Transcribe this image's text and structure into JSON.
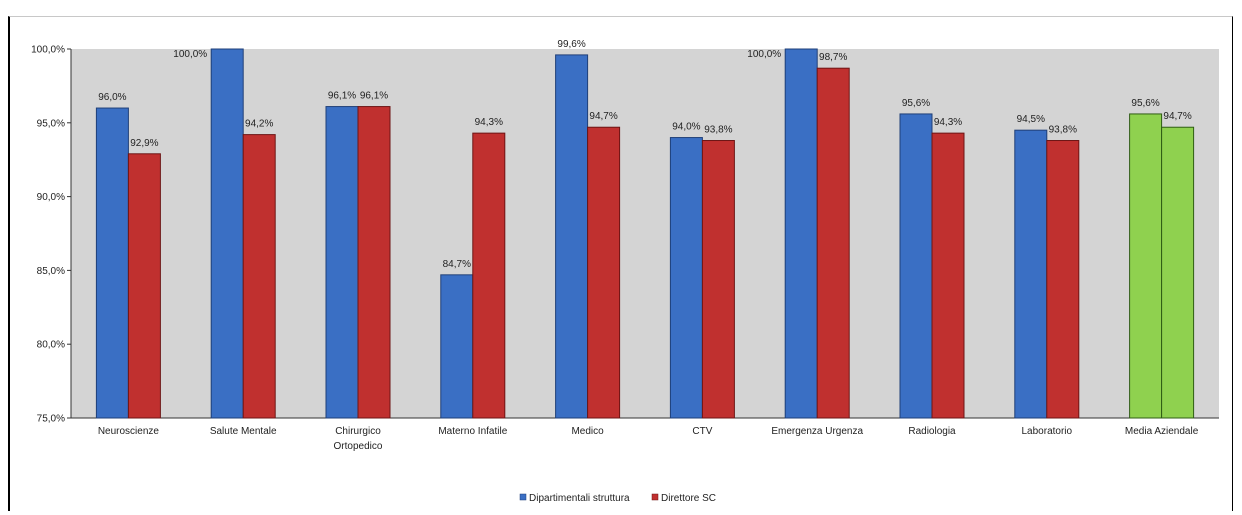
{
  "chart_data": {
    "type": "bar",
    "title": "",
    "xlabel": "",
    "ylabel": "",
    "ylim": [
      75,
      100
    ],
    "yticks": [
      "75,0%",
      "80,0%",
      "85,0%",
      "90,0%",
      "95,0%",
      "100,0%"
    ],
    "yticks_values": [
      75,
      80,
      85,
      90,
      95,
      100
    ],
    "grid": false,
    "legend_position": "bottom",
    "categories": [
      [
        "Neuroscienze"
      ],
      [
        "Salute Mentale"
      ],
      [
        "Chirurgico",
        "Ortopedico"
      ],
      [
        "Materno Infatile"
      ],
      [
        "Medico"
      ],
      [
        "CTV"
      ],
      [
        "Emergenza Urgenza"
      ],
      [
        "Radiologia"
      ],
      [
        "Laboratorio"
      ],
      [
        "Media Aziendale"
      ]
    ],
    "series": [
      {
        "name": "Dipartimentali struttura",
        "color": "#3a6fc4",
        "values": [
          96.0,
          100.0,
          96.1,
          84.7,
          99.6,
          94.0,
          100.0,
          95.6,
          94.5,
          95.6
        ],
        "labels": [
          "96,0%",
          "100,0%",
          "96,1%",
          "84,7%",
          "99,6%",
          "94,0%",
          "100,0%",
          "95,6%",
          "94,5%",
          "95,6%"
        ]
      },
      {
        "name": "Direttore SC",
        "color": "#c0302f",
        "values": [
          92.9,
          94.2,
          96.1,
          94.3,
          94.7,
          93.8,
          98.7,
          94.3,
          93.8,
          94.7
        ],
        "labels": [
          "92,9%",
          "94,2%",
          "96,1%",
          "94,3%",
          "94,7%",
          "93,8%",
          "98,7%",
          "94,3%",
          "93,8%",
          "94,7%"
        ]
      }
    ],
    "highlight": {
      "category_index": 9,
      "color": "#8fd14f",
      "stroke": "#2f5d14"
    },
    "colors": {
      "plot_bg": "#d4d4d4",
      "axis": "#333333",
      "blue_stroke": "#1f3f78",
      "red_stroke": "#6e1414"
    }
  }
}
